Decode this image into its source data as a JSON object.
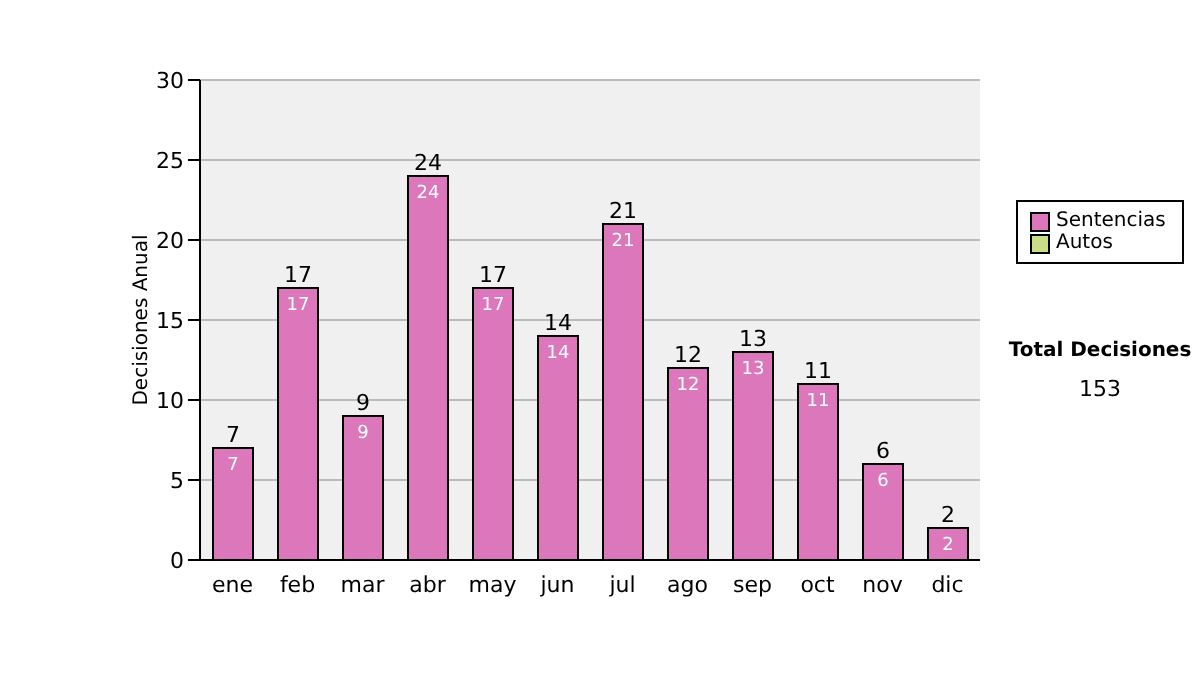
{
  "chart_data": {
    "type": "bar",
    "stacked": true,
    "ylabel": "Decisiones Anual",
    "categories": [
      "ene",
      "feb",
      "mar",
      "abr",
      "may",
      "jun",
      "jul",
      "ago",
      "sep",
      "oct",
      "nov",
      "dic"
    ],
    "series": [
      {
        "name": "Sentencias",
        "color": "#dd77bb",
        "values": [
          7,
          17,
          9,
          24,
          17,
          14,
          21,
          12,
          13,
          11,
          6,
          2
        ],
        "value_labels": [
          "7",
          "17",
          "9",
          "24",
          "17",
          "14",
          "21",
          "12",
          "13",
          "11",
          "6",
          "2"
        ]
      },
      {
        "name": "Autos",
        "color": "#ccdd88",
        "values": [
          0,
          0,
          0,
          0,
          0,
          0,
          0,
          0,
          0,
          0,
          0,
          0
        ]
      }
    ],
    "totals": [
      "7",
      "17",
      "9",
      "24",
      "17",
      "14",
      "21",
      "12",
      "13",
      "11",
      "6",
      "2"
    ],
    "ylim": [
      0,
      30
    ],
    "yticks": [
      0,
      5,
      10,
      15,
      20,
      25,
      30
    ],
    "grid": "y",
    "legend": "right",
    "annotations": [
      "Total Decisiones",
      "153"
    ]
  }
}
